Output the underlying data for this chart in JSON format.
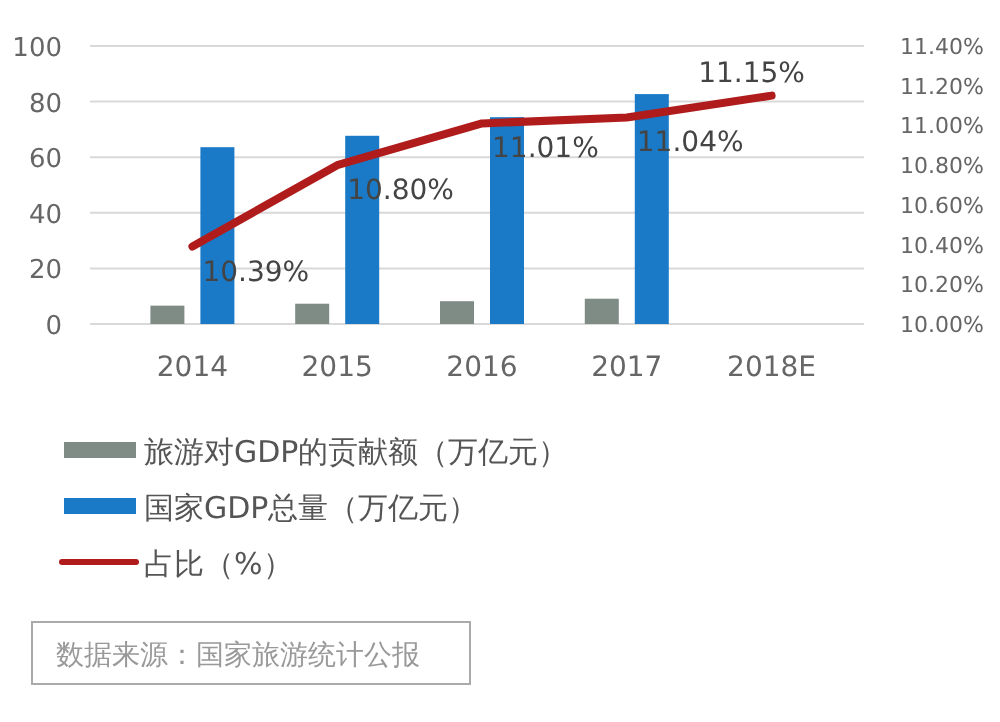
{
  "chart_data": {
    "type": "bar",
    "categories": [
      "2014",
      "2015",
      "2016",
      "2017",
      "2018E"
    ],
    "series": [
      {
        "name": "旅游对GDP的贡献额（万亿元）",
        "color": "#7f8c86",
        "values": [
          6.6,
          7.3,
          8.2,
          9.1,
          null
        ]
      },
      {
        "name": "国家GDP总量（万亿元）",
        "color": "#1a7ac8",
        "values": [
          63.6,
          67.7,
          74.4,
          82.7,
          null
        ]
      },
      {
        "name": "占比（%）",
        "type": "line",
        "axis": "y2",
        "color": "#b01c1c",
        "values": [
          10.39,
          10.8,
          11.01,
          11.04,
          11.15
        ],
        "value_labels": [
          "10.39%",
          "10.80%",
          "11.01%",
          "11.04%",
          "11.15%"
        ]
      }
    ],
    "ylim": [
      0,
      100
    ],
    "yticks": [
      0,
      20,
      40,
      60,
      80,
      100
    ],
    "y2lim": [
      10.0,
      11.4
    ],
    "y2ticks": [
      {
        "value": 10.0,
        "label": "10.00%"
      },
      {
        "value": 10.2,
        "label": "10.20%"
      },
      {
        "value": 10.4,
        "label": "10.40%"
      },
      {
        "value": 10.6,
        "label": "10.60%"
      },
      {
        "value": 10.8,
        "label": "10.80%"
      },
      {
        "value": 11.0,
        "label": "11.00%"
      },
      {
        "value": 11.2,
        "label": "11.20%"
      },
      {
        "value": 11.4,
        "label": "11.40%"
      }
    ],
    "grid": "y",
    "legend": "bottom left",
    "marker": "none",
    "annotations": [
      "数据来源：国家旅游统计公报"
    ]
  }
}
